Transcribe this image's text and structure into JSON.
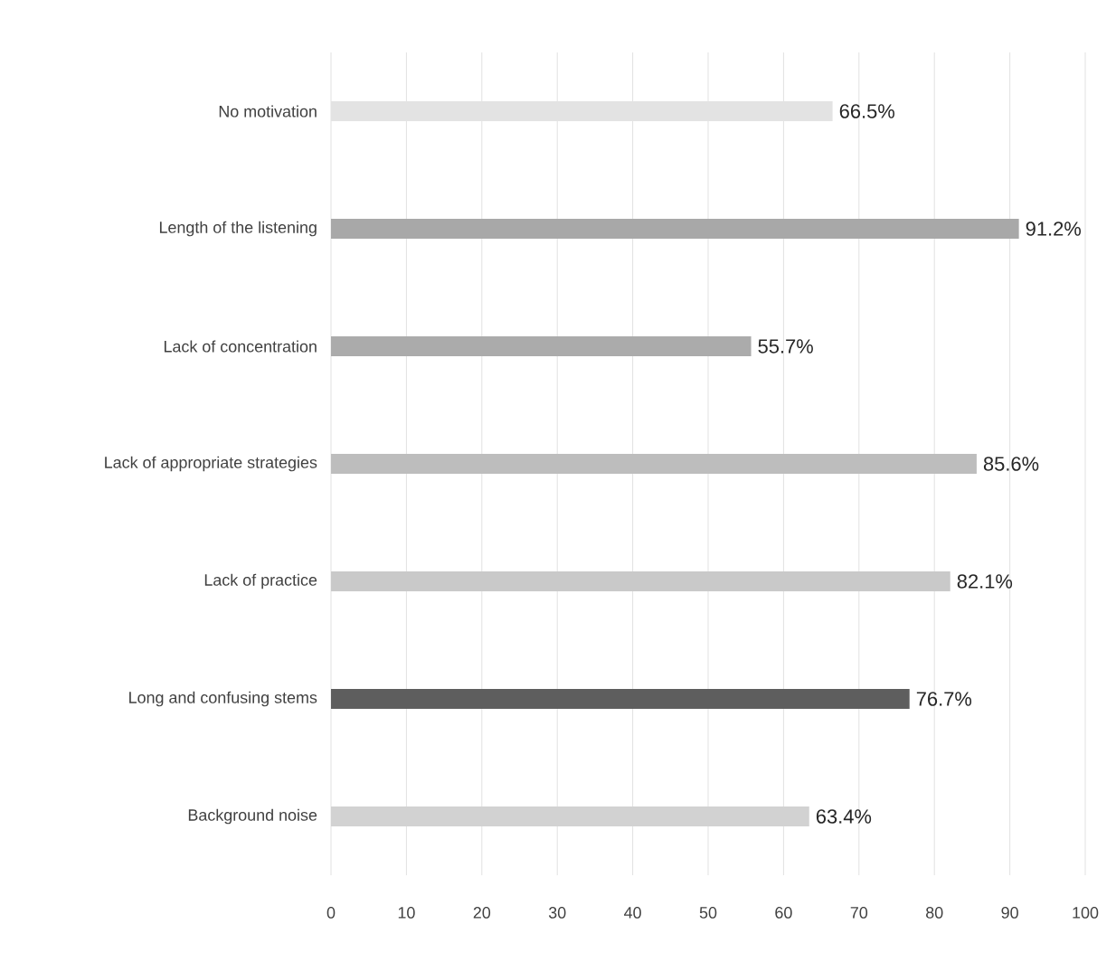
{
  "chart_data": {
    "type": "bar",
    "orientation": "horizontal",
    "categories": [
      "No motivation",
      "Length of the listening",
      "Lack of concentration",
      "Lack of appropriate strategies",
      "Lack of practice",
      "Long and confusing stems",
      "Background noise"
    ],
    "values": [
      66.5,
      91.2,
      55.7,
      85.6,
      82.1,
      76.7,
      63.4
    ],
    "value_labels": [
      "66.5%",
      "91.2%",
      "55.7%",
      "85.6%",
      "82.1%",
      "76.7%",
      "63.4%"
    ],
    "colors": [
      "#e3e3e3",
      "#a8a8a8",
      "#ababab",
      "#bdbdbd",
      "#c9c9c9",
      "#5e5e5e",
      "#d2d2d2"
    ],
    "xlim": [
      0,
      100
    ],
    "xticks": [
      0,
      10,
      20,
      30,
      40,
      50,
      60,
      70,
      80,
      90,
      100
    ],
    "grid": "x"
  }
}
